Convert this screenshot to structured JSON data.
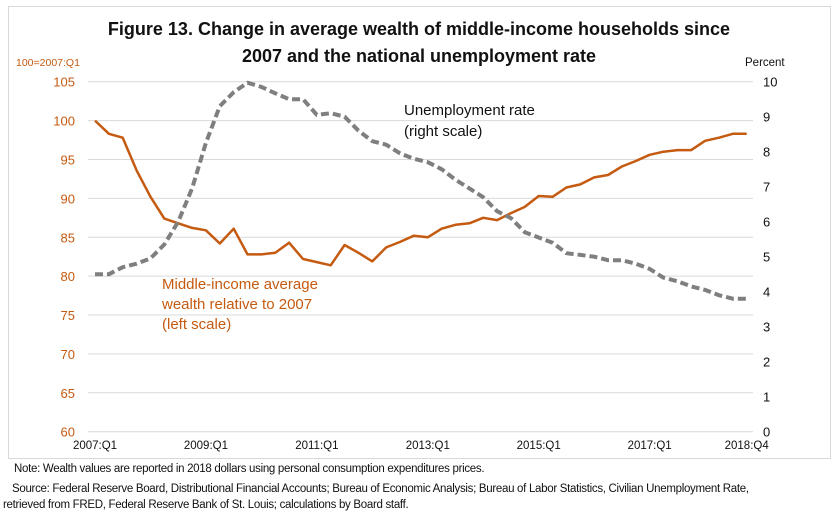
{
  "chart_data": {
    "type": "line",
    "title": "Figure 13.  Change in average wealth of middle-income households since",
    "title_line2": "2007 and the national unemployment rate",
    "left_axis_label": "100=2007:Q1",
    "right_axis_label": "Percent",
    "left_ylim": [
      60,
      105
    ],
    "right_ylim": [
      0,
      10
    ],
    "left_ticks": [
      "60",
      "65",
      "70",
      "75",
      "80",
      "85",
      "90",
      "95",
      "100",
      "105"
    ],
    "right_ticks": [
      "0",
      "1",
      "2",
      "3",
      "4",
      "5",
      "6",
      "7",
      "8",
      "9",
      "10"
    ],
    "x_ticks": [
      {
        "label": "2007:Q1",
        "index": 0
      },
      {
        "label": "2009:Q1",
        "index": 8
      },
      {
        "label": "2011:Q1",
        "index": 16
      },
      {
        "label": "2013:Q1",
        "index": 24
      },
      {
        "label": "2015:Q1",
        "index": 32
      },
      {
        "label": "2017:Q1",
        "index": 40
      },
      {
        "label": "2018:Q4",
        "index": 47
      }
    ],
    "x_range": [
      "2007:Q1",
      "2018:Q4"
    ],
    "frequency": "quarterly",
    "grid": "horizontal",
    "series": [
      {
        "name": "Middle-income average wealth relative to 2007 (left scale)",
        "label_lines": [
          "Middle-income average",
          "wealth relative to 2007",
          "(left scale)"
        ],
        "axis": "left",
        "color": "#C55A11",
        "style": "solid",
        "values": [
          100,
          98.3,
          97.8,
          93.6,
          90.2,
          87.4,
          86.8,
          86.2,
          85.9,
          84.2,
          86.1,
          82.8,
          82.8,
          83.0,
          84.3,
          82.2,
          81.8,
          81.4,
          84.0,
          83.0,
          81.9,
          83.7,
          84.4,
          85.2,
          85.0,
          86.1,
          86.6,
          86.8,
          87.5,
          87.2,
          88.1,
          88.9,
          90.3,
          90.2,
          91.4,
          91.8,
          92.7,
          93.0,
          94.1,
          94.8,
          95.6,
          96.0,
          96.2,
          96.2,
          97.4,
          97.8,
          98.3,
          98.3
        ]
      },
      {
        "name": "Unemployment rate (right scale)",
        "label_lines": [
          "Unemployment rate",
          "(right scale)"
        ],
        "axis": "right",
        "color": "#7F7F7F",
        "style": "dashed",
        "values": [
          4.5,
          4.5,
          4.7,
          4.8,
          4.95,
          5.35,
          6.0,
          6.95,
          8.25,
          9.3,
          9.7,
          9.97,
          9.85,
          9.67,
          9.5,
          9.5,
          9.05,
          9.1,
          9.0,
          8.6,
          8.3,
          8.2,
          7.95,
          7.8,
          7.7,
          7.5,
          7.2,
          6.95,
          6.7,
          6.3,
          6.1,
          5.7,
          5.55,
          5.4,
          5.1,
          5.05,
          5.0,
          4.9,
          4.9,
          4.8,
          4.65,
          4.4,
          4.3,
          4.15,
          4.05,
          3.9,
          3.8,
          3.8
        ]
      }
    ]
  },
  "notes": {
    "note": "Note:  Wealth values are reported in 2018 dollars using personal consumption expenditures prices.",
    "source_line1": "Source:  Federal Reserve Board, Distributional Financial Accounts; Bureau of Economic Analysis; Bureau of Labor Statistics, Civilian Unemployment Rate,",
    "source_line2": "retrieved from FRED, Federal Reserve Bank of St. Louis; calculations by Board staff."
  }
}
